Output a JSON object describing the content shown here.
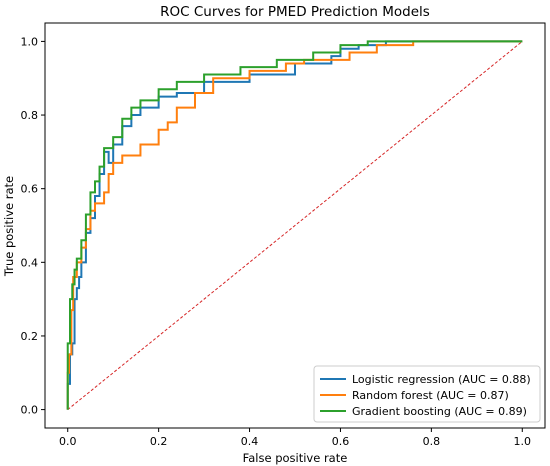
{
  "chart_data": {
    "type": "line",
    "title": "ROC Curves for PMED Prediction Models",
    "xlabel": "False positive rate",
    "ylabel": "True positive rate",
    "xlim": [
      -0.05,
      1.05
    ],
    "ylim": [
      -0.05,
      1.05
    ],
    "xticks": [
      "0.0",
      "0.2",
      "0.4",
      "0.6",
      "0.8",
      "1.0"
    ],
    "yticks": [
      "0.0",
      "0.2",
      "0.4",
      "0.6",
      "0.8",
      "1.0"
    ],
    "grid": false,
    "legend_position": "lower-right",
    "diagonal": {
      "x": [
        0,
        1
      ],
      "y": [
        0,
        1
      ],
      "color": "#d62728",
      "style": "dashed"
    },
    "series": [
      {
        "name": "Logistic regression (AUC = 0.88)",
        "color": "#1f77b4",
        "x": [
          0,
          0,
          0.005,
          0.005,
          0.01,
          0.01,
          0.015,
          0.015,
          0.02,
          0.02,
          0.025,
          0.025,
          0.03,
          0.03,
          0.04,
          0.04,
          0.05,
          0.05,
          0.06,
          0.06,
          0.07,
          0.07,
          0.08,
          0.08,
          0.09,
          0.09,
          0.1,
          0.1,
          0.12,
          0.12,
          0.14,
          0.14,
          0.16,
          0.16,
          0.2,
          0.2,
          0.24,
          0.24,
          0.3,
          0.3,
          0.4,
          0.4,
          0.5,
          0.5,
          0.58,
          0.58,
          0.6,
          0.6,
          0.64,
          0.64,
          0.7,
          0.7,
          1.0
        ],
        "y": [
          0,
          0.07,
          0.07,
          0.15,
          0.15,
          0.18,
          0.18,
          0.3,
          0.3,
          0.33,
          0.33,
          0.36,
          0.36,
          0.4,
          0.4,
          0.48,
          0.48,
          0.52,
          0.52,
          0.58,
          0.58,
          0.64,
          0.64,
          0.7,
          0.7,
          0.67,
          0.67,
          0.72,
          0.72,
          0.77,
          0.77,
          0.8,
          0.8,
          0.82,
          0.82,
          0.85,
          0.85,
          0.86,
          0.86,
          0.89,
          0.89,
          0.91,
          0.91,
          0.94,
          0.94,
          0.96,
          0.96,
          0.98,
          0.98,
          0.99,
          0.99,
          1.0,
          1.0
        ]
      },
      {
        "name": "Random forest (AUC = 0.87)",
        "color": "#ff7f0e",
        "x": [
          0,
          0,
          0.003,
          0.003,
          0.008,
          0.008,
          0.012,
          0.012,
          0.02,
          0.02,
          0.03,
          0.03,
          0.04,
          0.04,
          0.05,
          0.05,
          0.06,
          0.06,
          0.08,
          0.08,
          0.09,
          0.09,
          0.1,
          0.1,
          0.12,
          0.12,
          0.16,
          0.16,
          0.2,
          0.2,
          0.22,
          0.22,
          0.24,
          0.24,
          0.28,
          0.28,
          0.32,
          0.32,
          0.4,
          0.4,
          0.48,
          0.48,
          0.52,
          0.52,
          0.62,
          0.62,
          0.68,
          0.68,
          0.76,
          0.76,
          0.82,
          0.82,
          1.0
        ],
        "y": [
          0,
          0.1,
          0.1,
          0.15,
          0.15,
          0.27,
          0.27,
          0.36,
          0.36,
          0.4,
          0.4,
          0.44,
          0.44,
          0.49,
          0.49,
          0.54,
          0.54,
          0.56,
          0.56,
          0.59,
          0.59,
          0.64,
          0.64,
          0.67,
          0.67,
          0.69,
          0.69,
          0.72,
          0.72,
          0.76,
          0.76,
          0.78,
          0.78,
          0.82,
          0.82,
          0.86,
          0.86,
          0.9,
          0.9,
          0.92,
          0.92,
          0.94,
          0.94,
          0.95,
          0.95,
          0.97,
          0.97,
          0.99,
          0.99,
          1.0,
          1.0,
          1.0,
          1.0
        ]
      },
      {
        "name": "Gradient boosting (AUC = 0.89)",
        "color": "#2ca02c",
        "x": [
          0,
          0,
          0.005,
          0.005,
          0.01,
          0.01,
          0.015,
          0.015,
          0.02,
          0.02,
          0.03,
          0.03,
          0.04,
          0.04,
          0.05,
          0.05,
          0.06,
          0.06,
          0.07,
          0.07,
          0.08,
          0.08,
          0.1,
          0.1,
          0.12,
          0.12,
          0.14,
          0.14,
          0.16,
          0.16,
          0.2,
          0.2,
          0.24,
          0.24,
          0.3,
          0.3,
          0.38,
          0.38,
          0.46,
          0.46,
          0.54,
          0.54,
          0.6,
          0.6,
          0.66,
          0.66,
          1.0
        ],
        "y": [
          0,
          0.18,
          0.18,
          0.3,
          0.3,
          0.34,
          0.34,
          0.38,
          0.38,
          0.41,
          0.41,
          0.46,
          0.46,
          0.53,
          0.53,
          0.59,
          0.59,
          0.62,
          0.62,
          0.66,
          0.66,
          0.71,
          0.71,
          0.74,
          0.74,
          0.79,
          0.79,
          0.82,
          0.82,
          0.84,
          0.84,
          0.87,
          0.87,
          0.89,
          0.89,
          0.91,
          0.91,
          0.93,
          0.93,
          0.95,
          0.95,
          0.97,
          0.97,
          0.99,
          0.99,
          1.0,
          1.0
        ]
      }
    ]
  }
}
